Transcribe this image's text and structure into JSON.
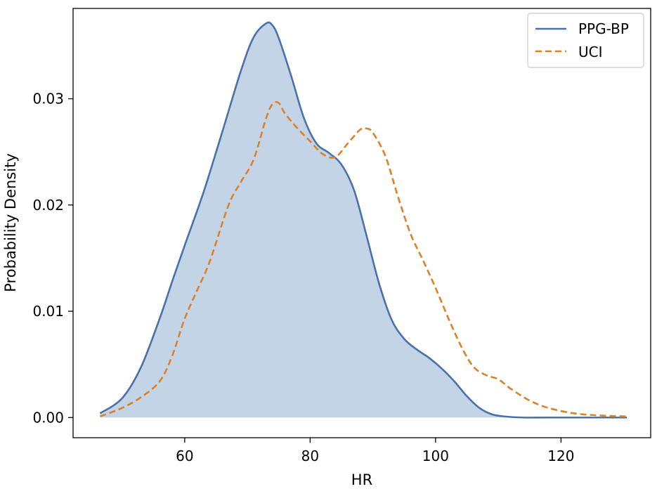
{
  "chart_data": {
    "type": "line",
    "xlabel": "HR",
    "ylabel": "Probability Density",
    "xlim": [
      42.2,
      134.3
    ],
    "ylim": [
      -0.0019,
      0.0385
    ],
    "x_ticks": [
      60,
      80,
      100,
      120
    ],
    "x_tick_labels": [
      "60",
      "80",
      "100",
      "120"
    ],
    "y_ticks": [
      0.0,
      0.01,
      0.02,
      0.03
    ],
    "y_tick_labels": [
      "0.00",
      "0.01",
      "0.02",
      "0.03"
    ],
    "grid": false,
    "legend_position": "top-right",
    "series": [
      {
        "name": "PPG-BP",
        "color": "#4a72aa",
        "style": "solid",
        "fill": true,
        "fill_color": "#c3d4e7",
        "x": [
          46.5,
          50,
          53,
          56,
          58,
          60,
          63,
          66,
          69,
          71,
          73,
          74,
          75,
          77,
          79,
          81,
          83,
          85,
          87,
          89,
          91,
          93,
          95,
          97,
          99,
          101,
          103,
          105,
          107,
          109,
          111,
          114,
          118,
          122,
          126,
          130.5
        ],
        "y": [
          0.0004,
          0.0018,
          0.0047,
          0.0093,
          0.0128,
          0.0162,
          0.0212,
          0.0269,
          0.0327,
          0.0358,
          0.0371,
          0.0369,
          0.0357,
          0.0321,
          0.0282,
          0.0258,
          0.0249,
          0.0238,
          0.0214,
          0.0171,
          0.0126,
          0.0092,
          0.0074,
          0.0064,
          0.0056,
          0.0046,
          0.0034,
          0.002,
          0.0009,
          0.0003,
          0.0001,
          0.0,
          0.0,
          0.0,
          0.0,
          0.0
        ]
      },
      {
        "name": "UCI",
        "color": "#dd8129",
        "style": "dashed",
        "fill": false,
        "x": [
          46.5,
          50,
          53,
          56,
          58,
          60,
          62,
          64,
          67,
          69,
          71,
          73,
          74,
          75,
          76,
          78,
          80,
          82,
          84,
          86,
          88,
          89,
          90,
          92,
          94,
          96,
          98,
          100,
          102,
          104,
          106,
          108,
          110,
          112,
          115,
          118,
          122,
          126,
          130.5
        ],
        "y": [
          0.0001,
          0.0009,
          0.0019,
          0.0034,
          0.0058,
          0.0093,
          0.012,
          0.0147,
          0.02,
          0.0222,
          0.0243,
          0.0282,
          0.0295,
          0.0296,
          0.0286,
          0.0272,
          0.026,
          0.0248,
          0.0245,
          0.0258,
          0.0271,
          0.0272,
          0.0268,
          0.0246,
          0.0208,
          0.0173,
          0.0148,
          0.0122,
          0.0094,
          0.0068,
          0.0048,
          0.004,
          0.0036,
          0.0027,
          0.0016,
          0.0009,
          0.0004,
          0.0002,
          0.0001
        ]
      }
    ]
  }
}
